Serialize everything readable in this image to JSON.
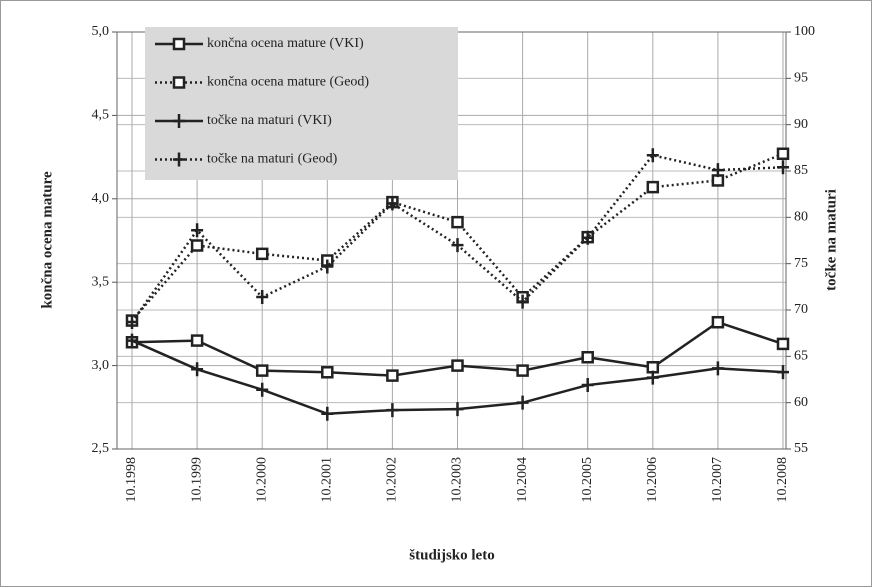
{
  "chart_data": {
    "type": "line",
    "x_label": "študijsko leto",
    "y_label": "končna ocena mature",
    "y2_label": "točke na maturi",
    "categories": [
      "10.1998",
      "10.1999",
      "10.2000",
      "10.2001",
      "10.2002",
      "10.2003",
      "10.2004",
      "10.2005",
      "10.2006",
      "10.2007",
      "10.2008"
    ],
    "ylim": [
      2.5,
      5.0
    ],
    "yticks": [
      {
        "value": 2.5,
        "label": "2,5"
      },
      {
        "value": 3.0,
        "label": "3,0"
      },
      {
        "value": 3.5,
        "label": "3,5"
      },
      {
        "value": 4.0,
        "label": "4,0"
      },
      {
        "value": 4.5,
        "label": "4,5"
      },
      {
        "value": 5.0,
        "label": "5,0"
      }
    ],
    "y2lim": [
      55,
      100
    ],
    "y2ticks": [
      55,
      60,
      65,
      70,
      75,
      80,
      85,
      90,
      95,
      100
    ],
    "grid": true,
    "legend": "top-left",
    "series": [
      {
        "name": "končna ocena mature (VKI)",
        "color": "#222222",
        "dotted": false,
        "marker": "square",
        "values": [
          3.14,
          3.15,
          2.97,
          2.96,
          2.94,
          3.0,
          2.97,
          3.05,
          2.99,
          3.26,
          3.13
        ]
      },
      {
        "name": "končna ocena mature (Geod)",
        "color": "#222222",
        "dotted": true,
        "marker": "square",
        "values": [
          3.27,
          3.72,
          3.67,
          3.63,
          3.98,
          3.86,
          3.41,
          3.77,
          4.07,
          4.11,
          4.27
        ]
      },
      {
        "name": "točke na maturi (VKI)",
        "color": "#222222",
        "dotted": false,
        "marker": "plus",
        "axis": "y2",
        "values": [
          66.7,
          63.6,
          61.4,
          58.8,
          59.2,
          59.3,
          60.0,
          61.9,
          62.7,
          63.7,
          63.3
        ]
      },
      {
        "name": "točke na maturi (Geod)",
        "color": "#222222",
        "dotted": true,
        "marker": "plus",
        "axis": "y2",
        "values": [
          68.7,
          78.6,
          71.4,
          74.7,
          81.5,
          77.0,
          70.9,
          77.8,
          86.7,
          85.1,
          85.4
        ]
      }
    ]
  }
}
